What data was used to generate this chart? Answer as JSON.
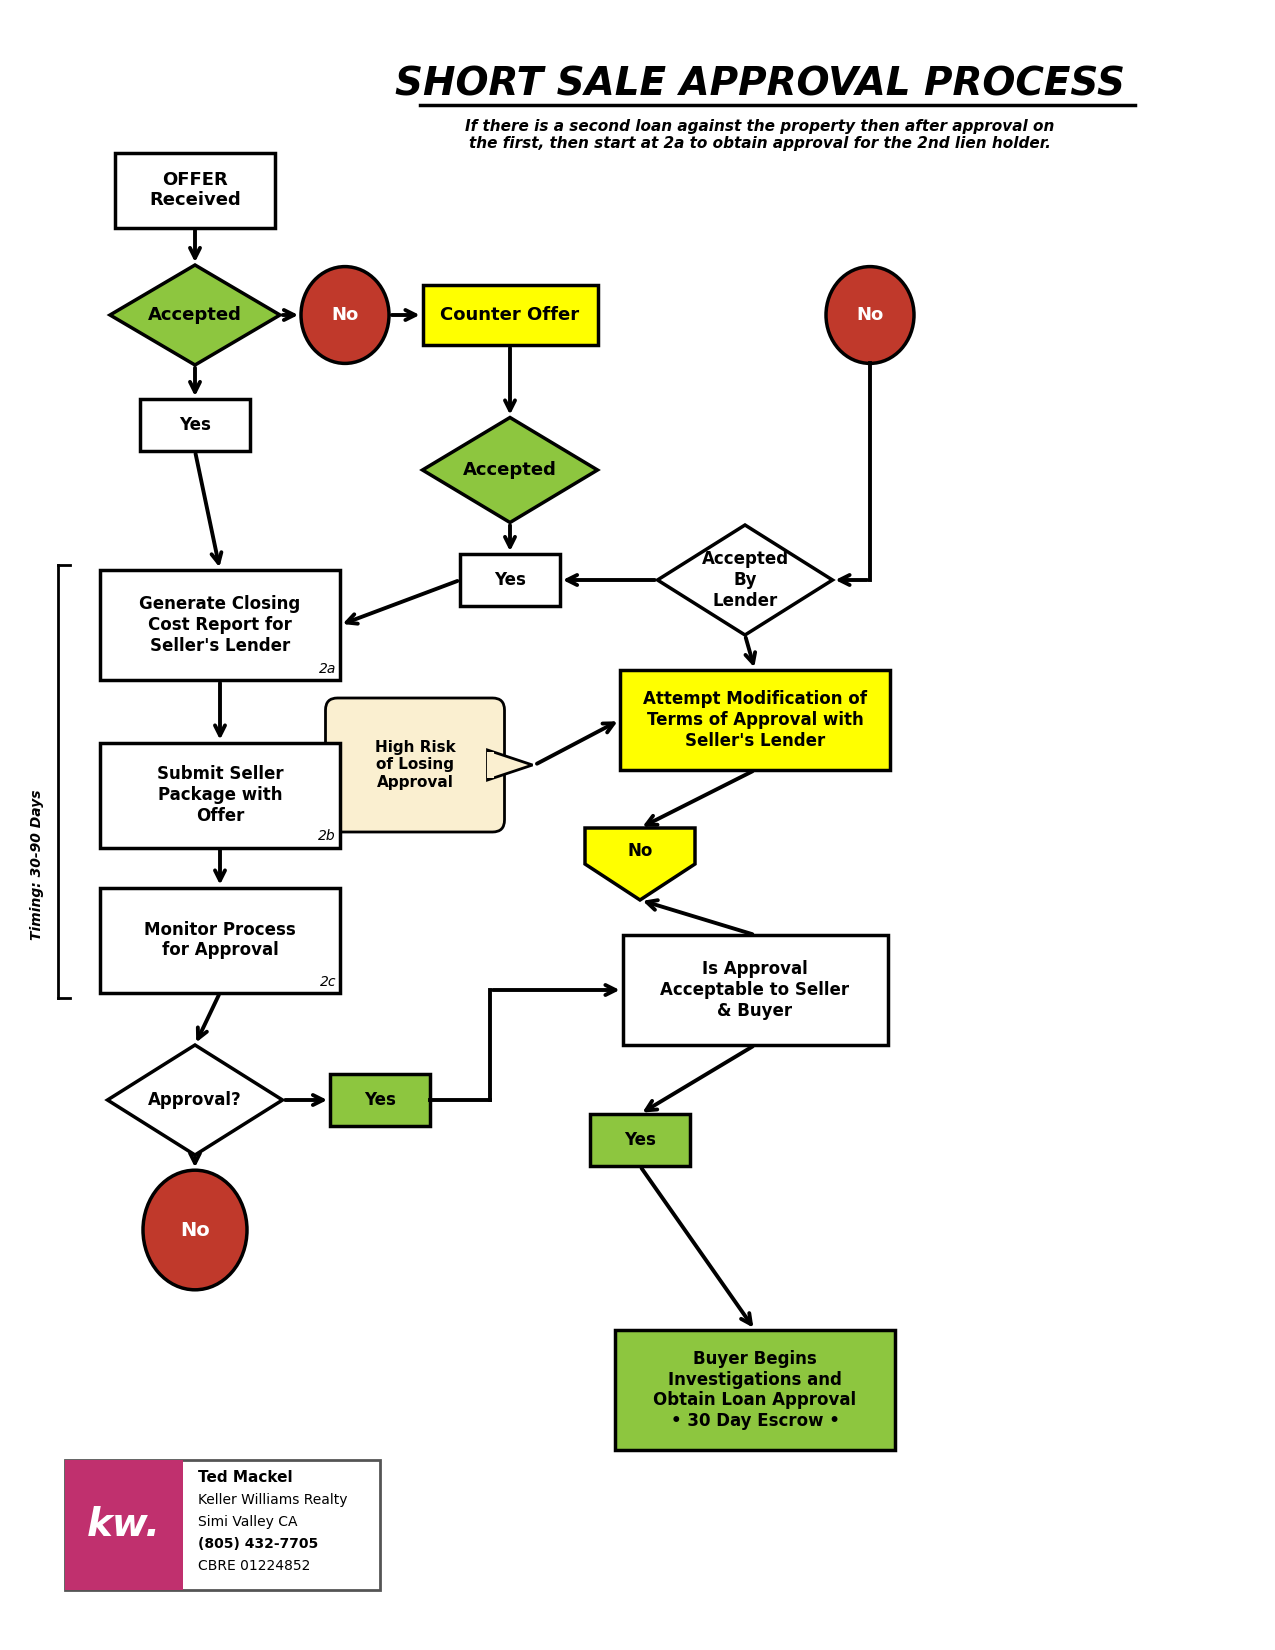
{
  "title": "SHORT SALE APPROVAL PROCESS",
  "subtitle_line1": "If there is a second loan against the property then after approval on",
  "subtitle_line2": "the first, then start at 2a to obtain approval for the 2nd lien holder.",
  "bg_color": "#ffffff",
  "colors": {
    "green_diamond": "#8dc63f",
    "white_box": "#ffffff",
    "yellow_box": "#ffff00",
    "red_circle": "#c0392b",
    "green_box": "#8dc63f",
    "cream_box": "#faefd0",
    "yellow_pentagon": "#ffff00",
    "white_diamond": "#ffffff",
    "kw_pink": "#c0306e",
    "arrow_color": "#000000"
  },
  "timing_text": "Timing: 30-90 Days",
  "kw_contact": {
    "name": "Ted Mackel",
    "line1": "Keller Williams Realty",
    "line2": "Simi Valley CA",
    "line3": "(805) 432-7705",
    "line4": "CBRE 01224852"
  }
}
